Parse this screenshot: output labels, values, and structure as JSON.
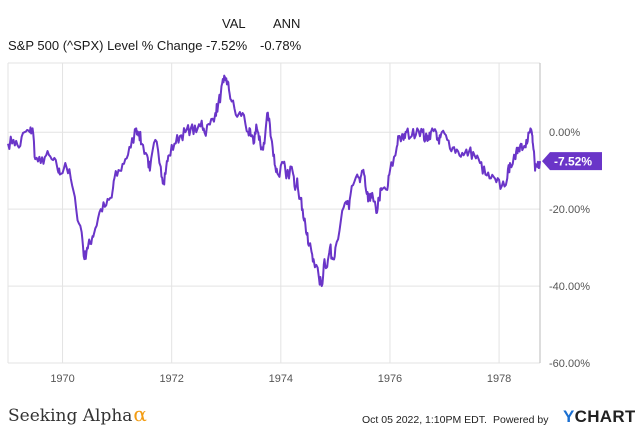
{
  "header": {
    "col_val": "VAL",
    "col_ann": "ANN",
    "series_name": "S&P 500 (^SPX) Level % Change",
    "val": "-7.52%",
    "ann": "-0.78%"
  },
  "footer": {
    "brand_text": "Seeking Alpha",
    "brand_mark": "α",
    "timestamp": "Oct 05 2022, 1:10PM EDT.",
    "powered_by": "Powered by",
    "ycharts_y": "Y",
    "ycharts_rest": "CHARTS"
  },
  "colors": {
    "line": "#6a35c8",
    "grid": "#e3e3e3",
    "axis_text": "#555555",
    "yaxis_line": "#bbbbbb"
  },
  "chart_data": {
    "type": "line",
    "title": "",
    "xlabel": "",
    "ylabel": "",
    "xlim": [
      1969.0,
      1978.75
    ],
    "ylim": [
      -60,
      18
    ],
    "y_ticks": [
      0,
      -20,
      -40,
      -60
    ],
    "y_tick_labels": [
      "0.00%",
      "-20.00%",
      "-40.00%",
      "-60.00%"
    ],
    "x_ticks": [
      1970,
      1972,
      1974,
      1976,
      1978
    ],
    "x_tick_labels": [
      "1970",
      "1972",
      "1974",
      "1976",
      "1978"
    ],
    "grid": true,
    "end_label": "-7.52%",
    "series": [
      {
        "name": "S&P 500 (^SPX) Level % Change",
        "points": [
          [
            1969.0,
            -3
          ],
          [
            1969.1,
            -2
          ],
          [
            1969.2,
            -4
          ],
          [
            1969.3,
            0
          ],
          [
            1969.4,
            0
          ],
          [
            1969.45,
            1
          ],
          [
            1969.5,
            -7
          ],
          [
            1969.6,
            -8
          ],
          [
            1969.7,
            -6
          ],
          [
            1969.8,
            -7
          ],
          [
            1969.9,
            -9
          ],
          [
            1969.95,
            -11
          ],
          [
            1970.05,
            -8
          ],
          [
            1970.15,
            -12
          ],
          [
            1970.25,
            -20
          ],
          [
            1970.35,
            -26
          ],
          [
            1970.4,
            -33
          ],
          [
            1970.45,
            -30
          ],
          [
            1970.5,
            -29
          ],
          [
            1970.55,
            -27
          ],
          [
            1970.6,
            -25
          ],
          [
            1970.7,
            -20
          ],
          [
            1970.8,
            -19
          ],
          [
            1970.9,
            -17
          ],
          [
            1970.95,
            -12
          ],
          [
            1971.05,
            -10
          ],
          [
            1971.15,
            -7
          ],
          [
            1971.25,
            -4
          ],
          [
            1971.35,
            1
          ],
          [
            1971.4,
            0
          ],
          [
            1971.45,
            -3
          ],
          [
            1971.55,
            -6
          ],
          [
            1971.6,
            -10
          ],
          [
            1971.7,
            -2
          ],
          [
            1971.8,
            -9
          ],
          [
            1971.85,
            -13
          ],
          [
            1971.9,
            -9
          ],
          [
            1971.95,
            -6
          ],
          [
            1972.05,
            -3
          ],
          [
            1972.15,
            -1
          ],
          [
            1972.25,
            0
          ],
          [
            1972.35,
            1
          ],
          [
            1972.45,
            0
          ],
          [
            1972.55,
            3
          ],
          [
            1972.6,
            0
          ],
          [
            1972.7,
            2
          ],
          [
            1972.8,
            5
          ],
          [
            1972.85,
            7
          ],
          [
            1972.9,
            10
          ],
          [
            1972.95,
            13
          ],
          [
            1973.0,
            14
          ],
          [
            1973.05,
            11
          ],
          [
            1973.1,
            8
          ],
          [
            1973.2,
            4
          ],
          [
            1973.3,
            5
          ],
          [
            1973.4,
            0
          ],
          [
            1973.45,
            -1
          ],
          [
            1973.5,
            -3
          ],
          [
            1973.55,
            2
          ],
          [
            1973.6,
            -2
          ],
          [
            1973.65,
            -4
          ],
          [
            1973.7,
            -3
          ],
          [
            1973.75,
            5
          ],
          [
            1973.8,
            2
          ],
          [
            1973.85,
            -4
          ],
          [
            1973.9,
            -9
          ],
          [
            1973.95,
            -11
          ],
          [
            1974.05,
            -8
          ],
          [
            1974.1,
            -12
          ],
          [
            1974.2,
            -9
          ],
          [
            1974.25,
            -14
          ],
          [
            1974.3,
            -12
          ],
          [
            1974.35,
            -17
          ],
          [
            1974.4,
            -20
          ],
          [
            1974.45,
            -24
          ],
          [
            1974.5,
            -29
          ],
          [
            1974.55,
            -30
          ],
          [
            1974.6,
            -33
          ],
          [
            1974.7,
            -38
          ],
          [
            1974.75,
            -40
          ],
          [
            1974.8,
            -33
          ],
          [
            1974.85,
            -35
          ],
          [
            1974.9,
            -30
          ],
          [
            1974.95,
            -33
          ],
          [
            1975.0,
            -30
          ],
          [
            1975.1,
            -23
          ],
          [
            1975.2,
            -18
          ],
          [
            1975.25,
            -20
          ],
          [
            1975.3,
            -14
          ],
          [
            1975.4,
            -11
          ],
          [
            1975.45,
            -13
          ],
          [
            1975.5,
            -10
          ],
          [
            1975.55,
            -14
          ],
          [
            1975.6,
            -18
          ],
          [
            1975.65,
            -16
          ],
          [
            1975.7,
            -18
          ],
          [
            1975.75,
            -21
          ],
          [
            1975.8,
            -17
          ],
          [
            1975.85,
            -15
          ],
          [
            1975.95,
            -15
          ],
          [
            1976.0,
            -10
          ],
          [
            1976.1,
            -6
          ],
          [
            1976.15,
            -1
          ],
          [
            1976.25,
            -2
          ],
          [
            1976.3,
            0
          ],
          [
            1976.4,
            -1
          ],
          [
            1976.5,
            1
          ],
          [
            1976.6,
            0
          ],
          [
            1976.65,
            -2
          ],
          [
            1976.7,
            -1
          ],
          [
            1976.75,
            0
          ],
          [
            1976.85,
            0
          ],
          [
            1976.9,
            -3
          ],
          [
            1976.95,
            0
          ],
          [
            1977.05,
            -2
          ],
          [
            1977.15,
            -4
          ],
          [
            1977.25,
            -5
          ],
          [
            1977.35,
            -6
          ],
          [
            1977.45,
            -5
          ],
          [
            1977.55,
            -6
          ],
          [
            1977.65,
            -8
          ],
          [
            1977.75,
            -11
          ],
          [
            1977.85,
            -12
          ],
          [
            1977.95,
            -13
          ],
          [
            1978.05,
            -14
          ],
          [
            1978.15,
            -12
          ],
          [
            1978.2,
            -8
          ],
          [
            1978.3,
            -7
          ],
          [
            1978.35,
            -4
          ],
          [
            1978.4,
            -3
          ],
          [
            1978.45,
            -4
          ],
          [
            1978.5,
            -2
          ],
          [
            1978.55,
            0
          ],
          [
            1978.6,
            0
          ],
          [
            1978.62,
            -3
          ],
          [
            1978.66,
            -10
          ],
          [
            1978.7,
            -9
          ],
          [
            1978.75,
            -7.52
          ]
        ]
      }
    ]
  }
}
